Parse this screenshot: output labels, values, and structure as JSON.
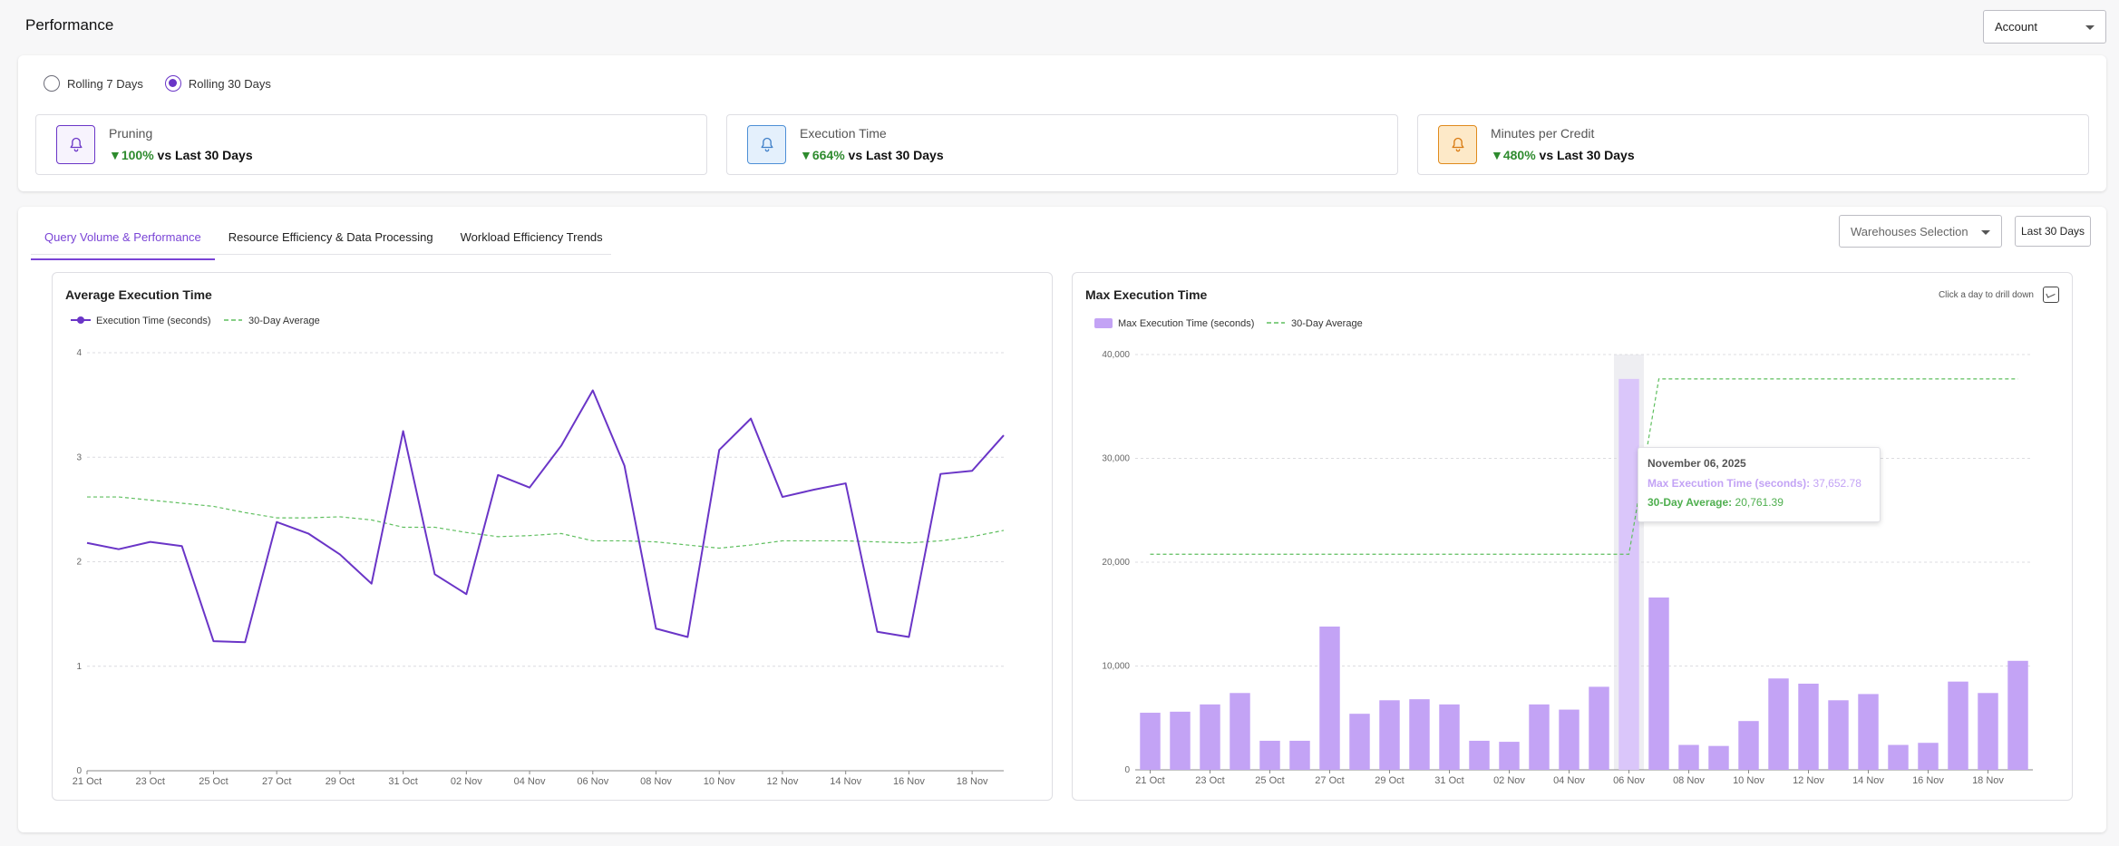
{
  "header": {
    "title": "Performance",
    "account_label": "Account"
  },
  "period": {
    "options": [
      "Rolling 7 Days",
      "Rolling 30 Days"
    ],
    "selected": 1
  },
  "kpis": [
    {
      "title": "Pruning",
      "change": "▼100%",
      "suffix": " vs Last 30 Days",
      "icon": "bell-icon",
      "bg": "#f7f3fd",
      "border": "#6a35c7",
      "stroke": "#6a35c7"
    },
    {
      "title": "Execution Time",
      "change": "▼664%",
      "suffix": " vs Last 30 Days",
      "icon": "bell-icon",
      "bg": "#e4f0fc",
      "border": "#4d8fd6",
      "stroke": "#3f7fc8"
    },
    {
      "title": "Minutes per Credit",
      "change": "▼480%",
      "suffix": " vs Last 30 Days",
      "icon": "bell-icon",
      "bg": "#fde9c8",
      "border": "#e08a1c",
      "stroke": "#d97a10"
    }
  ],
  "tabs": [
    "Query Volume & Performance",
    "Resource Efficiency & Data Processing",
    "Workload Efficiency Trends"
  ],
  "active_tab": 0,
  "filters": {
    "warehouses": "Warehouses Selection",
    "range": "Last 30 Days"
  },
  "colors": {
    "accent": "#7a44d6",
    "line": "#6a35c7",
    "bar": "#c3a3f5",
    "bar_highlight": "#dac6fa",
    "avg": "#5fbf5f"
  },
  "chart_data": [
    {
      "type": "line",
      "title": "Average Execution Time",
      "legend": [
        "Execution Time (seconds)",
        "30-Day Average"
      ],
      "ylim": [
        0,
        4
      ],
      "yticks": [
        "0",
        "1",
        "2",
        "3",
        "4"
      ],
      "x_tick_labels": [
        "21 Oct",
        "23 Oct",
        "25 Oct",
        "27 Oct",
        "29 Oct",
        "31 Oct",
        "02 Nov",
        "04 Nov",
        "06 Nov",
        "08 Nov",
        "10 Nov",
        "12 Nov",
        "14 Nov",
        "16 Nov",
        "18 Nov"
      ],
      "x": [
        "21 Oct",
        "22 Oct",
        "23 Oct",
        "24 Oct",
        "25 Oct",
        "26 Oct",
        "27 Oct",
        "28 Oct",
        "29 Oct",
        "30 Oct",
        "31 Oct",
        "01 Nov",
        "02 Nov",
        "03 Nov",
        "04 Nov",
        "05 Nov",
        "06 Nov",
        "07 Nov",
        "08 Nov",
        "09 Nov",
        "10 Nov",
        "11 Nov",
        "12 Nov",
        "13 Nov",
        "14 Nov",
        "15 Nov",
        "16 Nov",
        "17 Nov",
        "18 Nov",
        "19 Nov"
      ],
      "series": [
        {
          "name": "Execution Time (seconds)",
          "values": [
            2.18,
            2.12,
            2.19,
            2.15,
            1.24,
            1.23,
            2.38,
            2.27,
            2.07,
            1.79,
            3.25,
            1.88,
            1.69,
            2.83,
            2.71,
            3.11,
            3.64,
            2.92,
            1.36,
            1.28,
            3.07,
            3.37,
            2.62,
            2.69,
            2.75,
            1.33,
            1.28,
            2.84,
            2.87,
            3.21
          ]
        },
        {
          "name": "30-Day Average",
          "values": [
            2.62,
            2.62,
            2.59,
            2.56,
            2.53,
            2.47,
            2.42,
            2.42,
            2.43,
            2.4,
            2.33,
            2.33,
            2.28,
            2.24,
            2.25,
            2.27,
            2.2,
            2.2,
            2.19,
            2.16,
            2.13,
            2.16,
            2.2,
            2.2,
            2.2,
            2.19,
            2.18,
            2.2,
            2.24,
            2.3
          ]
        }
      ]
    },
    {
      "type": "bar",
      "title": "Max Execution Time",
      "hint": "Click a day to drill down",
      "legend": [
        "Max Execution Time (seconds)",
        "30-Day Average"
      ],
      "ylim": [
        0,
        40000
      ],
      "yticks": [
        "0",
        "10,000",
        "20,000",
        "30,000",
        "40,000"
      ],
      "x_tick_labels": [
        "21 Oct",
        "23 Oct",
        "25 Oct",
        "27 Oct",
        "29 Oct",
        "31 Oct",
        "02 Nov",
        "04 Nov",
        "06 Nov",
        "08 Nov",
        "10 Nov",
        "12 Nov",
        "14 Nov",
        "16 Nov",
        "18 Nov"
      ],
      "categories": [
        "21 Oct",
        "22 Oct",
        "23 Oct",
        "24 Oct",
        "25 Oct",
        "26 Oct",
        "27 Oct",
        "28 Oct",
        "29 Oct",
        "30 Oct",
        "31 Oct",
        "01 Nov",
        "02 Nov",
        "03 Nov",
        "04 Nov",
        "05 Nov",
        "06 Nov",
        "07 Nov",
        "08 Nov",
        "09 Nov",
        "10 Nov",
        "11 Nov",
        "12 Nov",
        "13 Nov",
        "14 Nov",
        "15 Nov",
        "16 Nov",
        "17 Nov",
        "18 Nov",
        "19 Nov"
      ],
      "series": [
        {
          "name": "Max Execution Time (seconds)",
          "values": [
            5500,
            5600,
            6300,
            7400,
            2800,
            2800,
            13800,
            5400,
            6700,
            6800,
            6300,
            2800,
            2700,
            6300,
            5800,
            8000,
            37652.78,
            16600,
            2400,
            2300,
            4700,
            8800,
            8300,
            6700,
            7300,
            2400,
            2600,
            8500,
            7400,
            10500
          ]
        },
        {
          "name": "30-Day Average",
          "values": [
            20761.39,
            20761.39,
            20761.39,
            20761.39,
            20761.39,
            20761.39,
            20761.39,
            20761.39,
            20761.39,
            20761.39,
            20761.39,
            20761.39,
            20761.39,
            20761.39,
            20761.39,
            20761.39,
            20761.39,
            37652.78,
            37652.78,
            37652.78,
            37652.78,
            37652.78,
            37652.78,
            37652.78,
            37652.78,
            37652.78,
            37652.78,
            37652.78,
            37652.78,
            37652.78
          ]
        }
      ],
      "highlight_index": 16,
      "tooltip": {
        "date": "November 06, 2025",
        "max_label": "Max Execution Time (seconds):",
        "max_value": "37,652.78",
        "avg_label": "30-Day Average:",
        "avg_value": "20,761.39"
      }
    }
  ]
}
